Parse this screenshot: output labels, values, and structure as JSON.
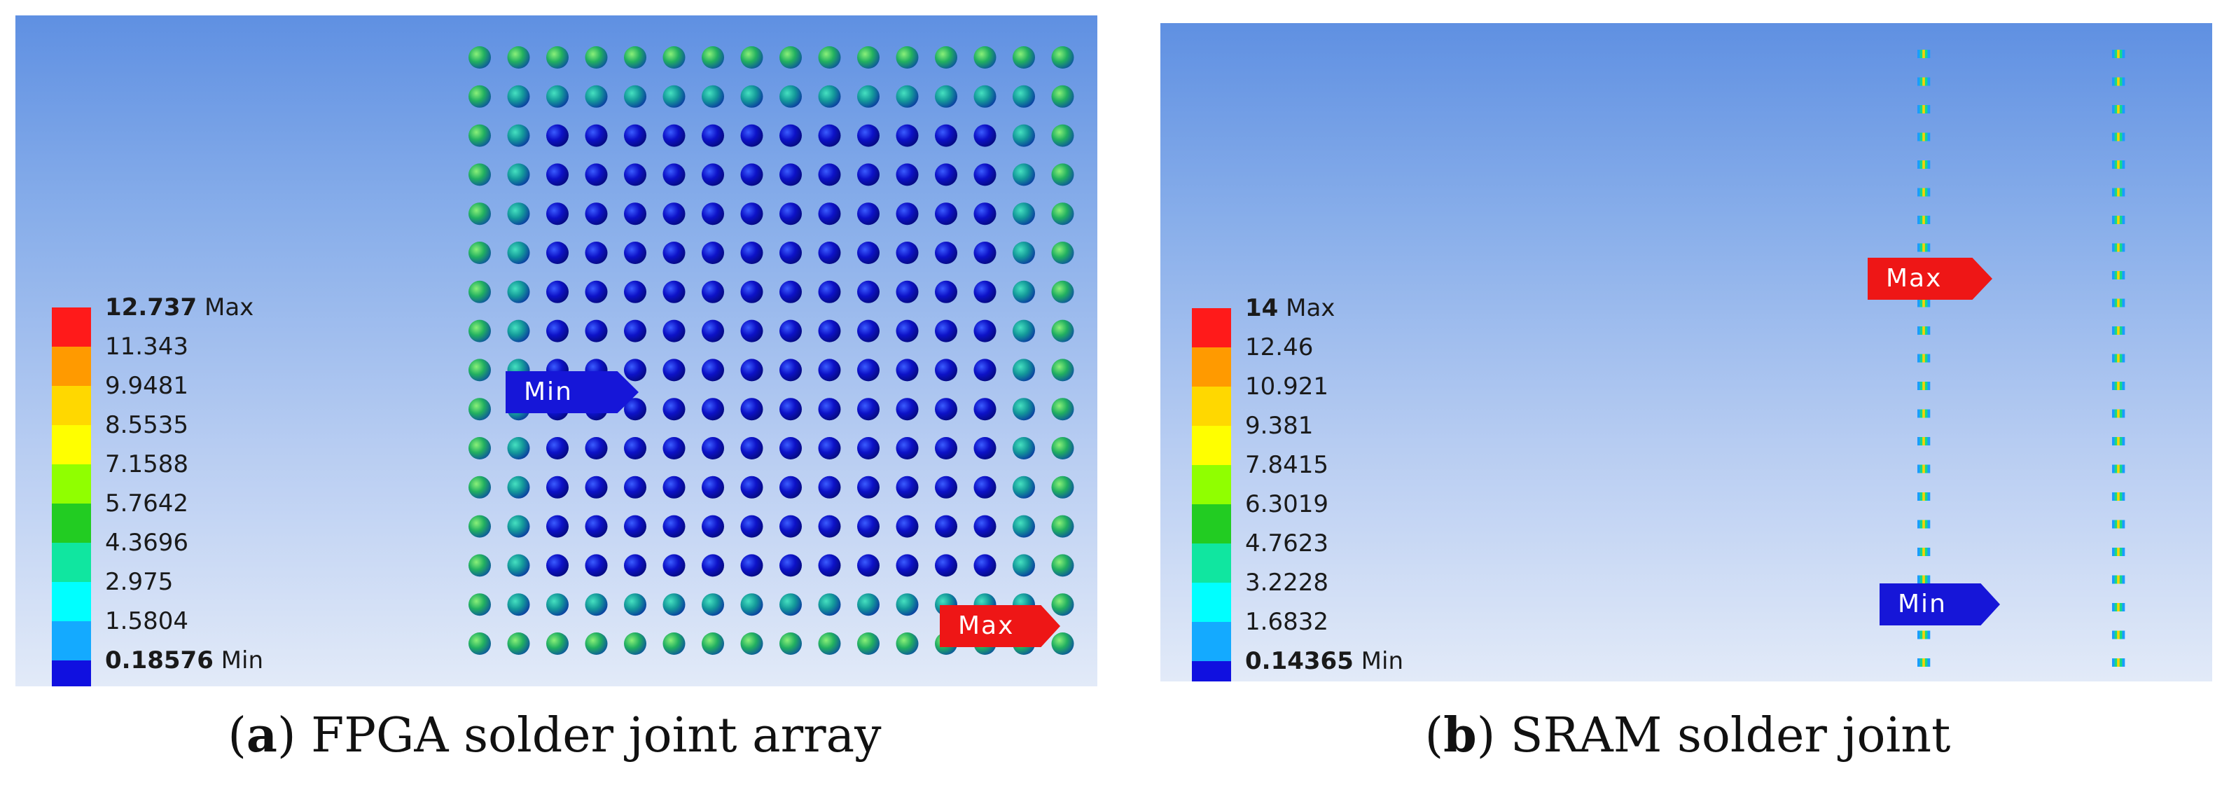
{
  "panel_a": {
    "legend": {
      "labels": [
        "12.737",
        "11.343",
        "9.9481",
        "8.5535",
        "7.1588",
        "5.7642",
        "4.3696",
        "2.975",
        "1.5804",
        "0.18576"
      ],
      "max_suffix": "Max",
      "min_suffix": "Min"
    },
    "probes": {
      "min": "Min",
      "max": "Max"
    },
    "caption": {
      "letter": "a",
      "text": "FPGA solder joint array"
    }
  },
  "panel_b": {
    "legend": {
      "labels": [
        "14",
        "12.46",
        "10.921",
        "9.381",
        "7.8415",
        "6.3019",
        "4.7623",
        "3.2228",
        "1.6832",
        "0.14365"
      ],
      "max_suffix": "Max",
      "min_suffix": "Min"
    },
    "probes": {
      "min": "Min",
      "max": "Max"
    },
    "caption": {
      "letter": "b",
      "text": "SRAM solder joint"
    }
  },
  "colors": {
    "scale": [
      "#ff1a1a",
      "#ff9a00",
      "#ffd800",
      "#ffff00",
      "#90ff00",
      "#22cc22",
      "#10e6a0",
      "#00ffff",
      "#14aaff",
      "#1010e0"
    ],
    "probe_min": "#1616d8",
    "probe_max": "#ee1616",
    "background_top": "#5f90e2",
    "background_bottom": "#e2eaf8"
  },
  "fpga_grid": {
    "rows": 16,
    "cols": 16
  },
  "sram_columns": {
    "count": 2,
    "joints_per_column": 23
  }
}
